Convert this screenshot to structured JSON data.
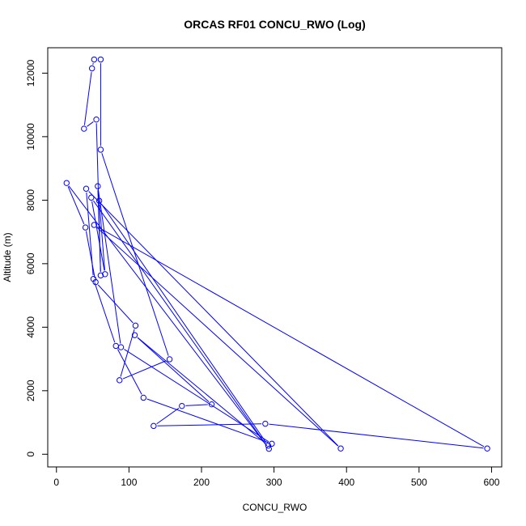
{
  "chart_data": {
    "type": "line",
    "title": "ORCAS RF01 CONCU_RWO (Log)",
    "xlabel": "CONCU_RWO",
    "ylabel": "Altitude (m)",
    "xlim": [
      -12,
      614
    ],
    "ylim": [
      -400,
      12800
    ],
    "xticks": [
      0,
      100,
      200,
      300,
      400,
      500,
      600
    ],
    "yticks": [
      0,
      2000,
      4000,
      6000,
      8000,
      10000,
      12000
    ],
    "grid": false,
    "legend": "none",
    "series": [
      {
        "color": "#0000ff",
        "marker": "open-circle",
        "points": [
          [
            61,
            12430
          ],
          [
            61,
            9590
          ],
          [
            156,
            2990
          ],
          [
            87,
            2330
          ],
          [
            109,
            4050
          ],
          [
            54,
            5420
          ],
          [
            40,
            7140
          ],
          [
            14,
            8540
          ],
          [
            293,
            170
          ],
          [
            48,
            8080
          ],
          [
            67,
            5670
          ],
          [
            59,
            7980
          ],
          [
            292,
            270
          ],
          [
            108,
            3750
          ],
          [
            214,
            1570
          ],
          [
            173,
            1520
          ],
          [
            134,
            890
          ],
          [
            288,
            960
          ],
          [
            594,
            180
          ],
          [
            52,
            7220
          ],
          [
            392,
            180
          ],
          [
            41,
            8360
          ],
          [
            51,
            5520
          ],
          [
            82,
            3410
          ],
          [
            120,
            1780
          ],
          [
            297,
            330
          ],
          [
            89,
            3370
          ],
          [
            57,
            8440
          ],
          [
            61,
            5630
          ],
          [
            55,
            10540
          ],
          [
            38,
            10250
          ],
          [
            49,
            12150
          ],
          [
            52,
            12430
          ]
        ]
      }
    ]
  }
}
